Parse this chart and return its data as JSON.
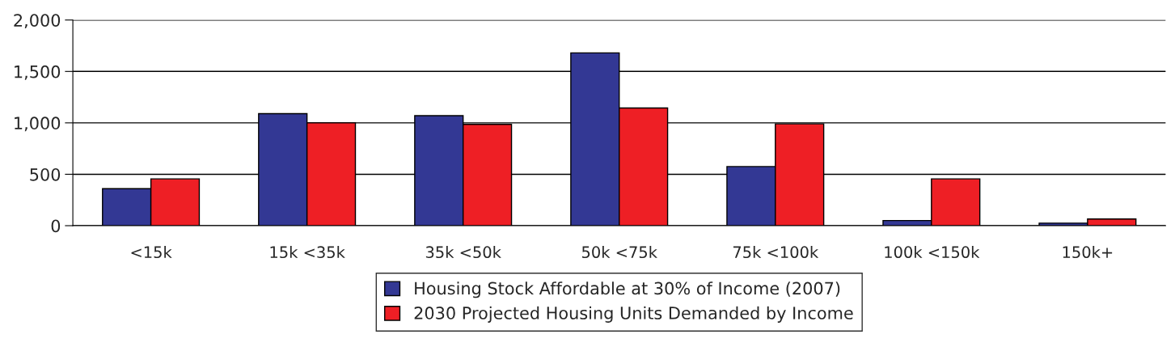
{
  "chart_data": {
    "type": "bar",
    "categories": [
      "<15k",
      "15k <35k",
      "35k <50k",
      "50k <75k",
      "75k <100k",
      "100k <150k",
      "150k+"
    ],
    "series": [
      {
        "name": "Housing Stock Affordable at 30% of Income (2007)",
        "color": "#333894",
        "values": [
          360,
          1090,
          1070,
          1680,
          575,
          50,
          25
        ]
      },
      {
        "name": "2030 Projected Housing Units Demanded by Income",
        "color": "#ee1f25",
        "values": [
          455,
          1000,
          985,
          1145,
          990,
          455,
          65
        ]
      }
    ],
    "ylim": [
      0,
      2000
    ],
    "yticks": [
      {
        "value": 0,
        "label": "0"
      },
      {
        "value": 500,
        "label": "500"
      },
      {
        "value": 1000,
        "label": "1,000"
      },
      {
        "value": 1500,
        "label": "1,500"
      },
      {
        "value": 2000,
        "label": "2,000"
      }
    ],
    "grid": "y",
    "legend": "bottom"
  }
}
